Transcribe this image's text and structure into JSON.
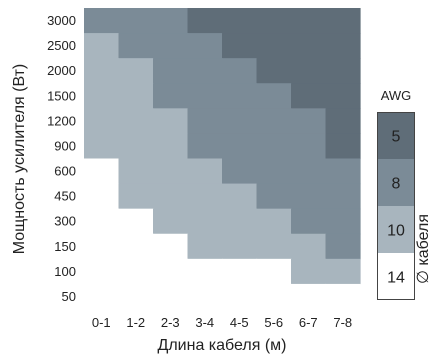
{
  "chart_data": {
    "type": "heatmap",
    "xlabel": "Длина кабеля (м)",
    "ylabel": "Мощность усилителя (Вт)",
    "x_categories": [
      "0-1",
      "1-2",
      "2-3",
      "3-4",
      "4-5",
      "5-6",
      "6-7",
      "7-8"
    ],
    "y_categories": [
      "3000",
      "2500",
      "2000",
      "1500",
      "1200",
      "900",
      "600",
      "450",
      "300",
      "150",
      "100",
      "50"
    ],
    "grid": [
      [
        8,
        8,
        8,
        5,
        5,
        5,
        5,
        5
      ],
      [
        10,
        8,
        8,
        8,
        5,
        5,
        5,
        5
      ],
      [
        10,
        10,
        8,
        8,
        8,
        5,
        5,
        5
      ],
      [
        10,
        10,
        8,
        8,
        8,
        8,
        5,
        5
      ],
      [
        10,
        10,
        10,
        8,
        8,
        8,
        8,
        5
      ],
      [
        10,
        10,
        10,
        8,
        8,
        8,
        8,
        5
      ],
      [
        14,
        10,
        10,
        10,
        8,
        8,
        8,
        8
      ],
      [
        14,
        10,
        10,
        10,
        10,
        8,
        8,
        8
      ],
      [
        14,
        14,
        10,
        10,
        10,
        10,
        8,
        8
      ],
      [
        14,
        14,
        14,
        10,
        10,
        10,
        10,
        8
      ],
      [
        14,
        14,
        14,
        14,
        14,
        14,
        10,
        10
      ],
      [
        14,
        14,
        14,
        14,
        14,
        14,
        14,
        14
      ]
    ],
    "legend": {
      "title": "AWG",
      "side_label": "∅ кабеля",
      "items": [
        {
          "value": 5,
          "label": "5",
          "color": "#5f6d78"
        },
        {
          "value": 8,
          "label": "8",
          "color": "#7b8b97"
        },
        {
          "value": 10,
          "label": "10",
          "color": "#a8b5be"
        },
        {
          "value": 14,
          "label": "14",
          "color": "#ffffff"
        }
      ]
    }
  }
}
